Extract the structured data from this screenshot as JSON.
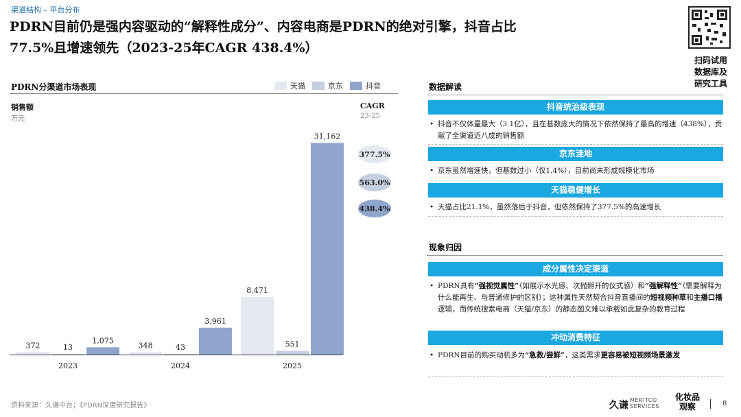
{
  "breadcrumb": "渠道结构 – 平台分布",
  "title_line1": "PDRN目前仍是强内容驱动的“解释性成分”、内容电商是PDRN的绝对引擎，抖音占比",
  "title_line2": "77.5%且增速领先（2023-25年CAGR 438.4%）",
  "qr_text_line1": "扫码试用",
  "qr_text_line2": "数据库及",
  "qr_text_line3": "研究工具",
  "chart_data": {
    "type": "bar",
    "title": "PDRN分渠道市场表现",
    "ylabel": "销售额",
    "yunit": "万元",
    "categories": [
      "2023",
      "2024",
      "2025"
    ],
    "series": [
      {
        "name": "天猫",
        "color": "#e3e8f1",
        "values": [
          372,
          348,
          8471
        ],
        "labels": [
          "372",
          "348",
          "8,471"
        ]
      },
      {
        "name": "京东",
        "color": "#c5cfe2",
        "values": [
          13,
          43,
          551
        ],
        "labels": [
          "13",
          "43",
          "551"
        ]
      },
      {
        "name": "抖音",
        "color": "#8fa5cb",
        "values": [
          1075,
          3961,
          31162
        ],
        "labels": [
          "1,075",
          "3,961",
          "31,162"
        ]
      }
    ],
    "ylim": [
      0,
      32000
    ],
    "grid": false,
    "legend": "top-right",
    "cagr": {
      "label": "CAGR",
      "period": "23-25",
      "values": [
        {
          "series": "天猫",
          "value": "377.5%",
          "bg": "#e3e8f1"
        },
        {
          "series": "京东",
          "value": "563.0%",
          "bg": "#c5cfe2"
        },
        {
          "series": "抖音",
          "value": "438.4%",
          "bg": "#8fa5cb"
        }
      ]
    }
  },
  "interpretation": {
    "title": "数据解读",
    "sections": [
      {
        "heading": "抖音统治级表现",
        "text": "抖音不仅体量最大（3.1亿），且在基数庞大的情况下依然保持了最高的增速（438%），贡献了全渠道近八成的销售额"
      },
      {
        "heading": "京东洼地",
        "text": "京东虽然增速快，但基数过小（仅1.4%），目前尚未形成规模化市场"
      },
      {
        "heading": "天猫稳健增长",
        "text": "天猫占比21.1%，虽然落后于抖音，但依然保持了377.5%的高速增长"
      }
    ]
  },
  "causes": {
    "title": "现象归因",
    "section1_heading": "成分属性决定渠道",
    "section1_p1": "PDRN具有",
    "section1_b1": "“强视觉属性”",
    "section1_p2": "（如展示水光感、次抛掰开的仪式感）和",
    "section1_b2": "“强解释性”",
    "section1_p3": "（需要解释为什么能再生、与普通修护的区别）；这种属性天然契合抖音直播间的",
    "section1_b3": "短视频种草",
    "section1_p4": "和",
    "section1_b4": "主播口播",
    "section1_p5": "逻辑，而传统搜索电商（天猫/京东）的静态图文难以承载如此复杂的教育过程",
    "section2_heading": "冲动消费特征",
    "section2_p1": "PDRN目前的购买动机多为",
    "section2_b1": "“急救/尝鲜”",
    "section2_p2": "，这类需求",
    "section2_b2": "更容易被短视频场景激发"
  },
  "footer": {
    "source": "资料来源：久谦中台；《PDRN深度研究报告》",
    "logo1": "久谦",
    "logo1_sub1": "MERITCO",
    "logo1_sub2": "SERVICES",
    "logo2_line1": "化妆品",
    "logo2_line2": "观察",
    "page": "8"
  }
}
